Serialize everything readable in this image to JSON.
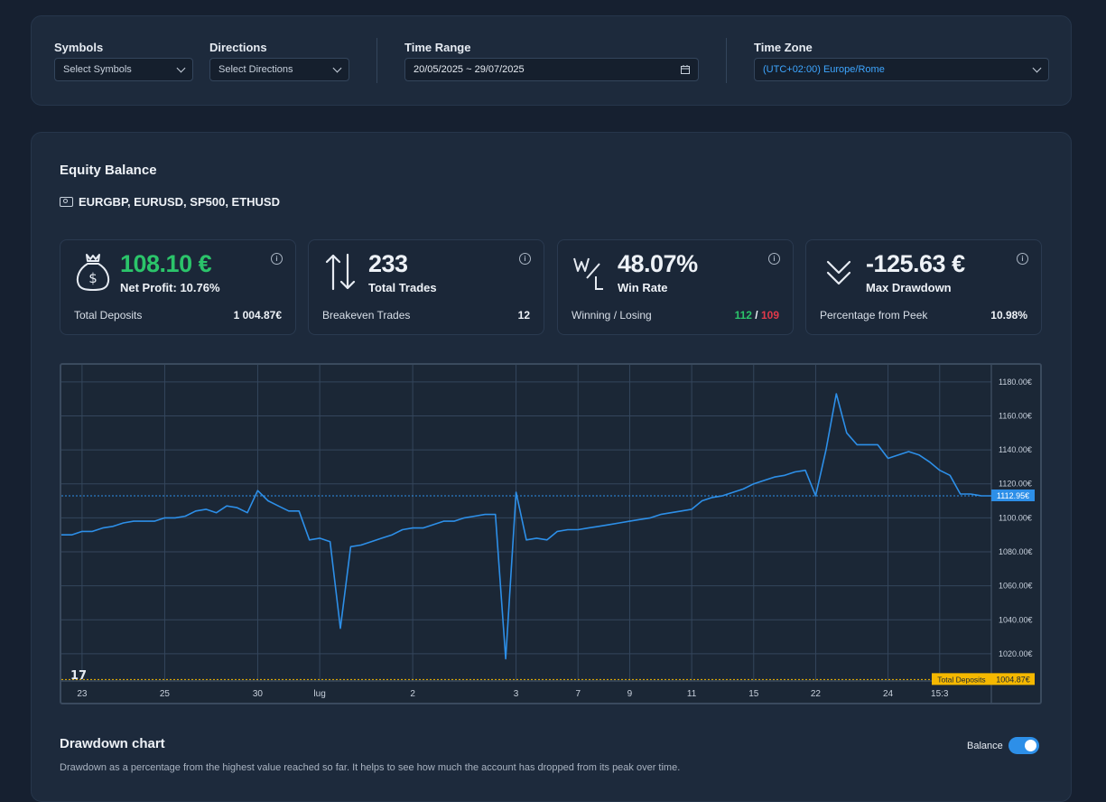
{
  "filters": {
    "symbols": {
      "label": "Symbols",
      "placeholder": "Select Symbols"
    },
    "directions": {
      "label": "Directions",
      "placeholder": "Select Directions"
    },
    "time_range": {
      "label": "Time Range",
      "value": "20/05/2025 ~ 29/07/2025"
    },
    "time_zone": {
      "label": "Time Zone",
      "value": "(UTC+02:00) Europe/Rome"
    }
  },
  "equity": {
    "title": "Equity Balance",
    "symbols": "EURGBP, EURUSD, SP500, ETHUSD"
  },
  "stats": [
    {
      "value": "108.10 €",
      "sub": "Net Profit: 10.76%",
      "foot_label": "Total Deposits",
      "foot_value": "1 004.87€",
      "icon": "money-bag-icon"
    },
    {
      "value": "233",
      "sub": "Total Trades",
      "foot_label": "Breakeven Trades",
      "foot_value": "12",
      "icon": "up-down-arrows-icon"
    },
    {
      "value": "48.07%",
      "sub": "Win Rate",
      "foot_label": "Winning / Losing",
      "win": "112",
      "sep": " / ",
      "lose": "109",
      "icon": "win-loss-icon"
    },
    {
      "value": "-125.63 €",
      "sub": "Max Drawdown",
      "foot_label": "Percentage from Peek",
      "foot_value": "10.98%",
      "icon": "double-chevron-down-icon"
    }
  ],
  "colors": {
    "accent": "#2d8fe8",
    "profit": "#2bc46a",
    "loss": "#e0394a",
    "deposit_marker": "#f5b800"
  },
  "chart_data": {
    "type": "line",
    "xlabel": "",
    "ylabel": "",
    "ylim": [
      1004,
      1190
    ],
    "y_ticks": [
      "1180.00€",
      "1160.00€",
      "1140.00€",
      "1120.00€",
      "1100.00€",
      "1080.00€",
      "1060.00€",
      "1040.00€",
      "1020.00€"
    ],
    "y_tick_values": [
      1180,
      1160,
      1140,
      1120,
      1100,
      1080,
      1060,
      1040,
      1020
    ],
    "x_ticks": [
      "23",
      "25",
      "30",
      "lug",
      "2",
      "3",
      "7",
      "9",
      "11",
      "15",
      "22",
      "24",
      "15:3"
    ],
    "x_tick_index": [
      2,
      10,
      19,
      25,
      34,
      44,
      50,
      55,
      61,
      67,
      73,
      80,
      85
    ],
    "current_value_label": "1112.95€",
    "current_value": 1112.95,
    "deposit_label": "Total Deposits",
    "deposit_value_label": "1004.87€",
    "deposit_value": 1004.87,
    "series": [
      {
        "values": [
          1090,
          1090,
          1092,
          1092,
          1094,
          1095,
          1097,
          1098,
          1098,
          1098,
          1100,
          1100,
          1101,
          1104,
          1105,
          1103,
          1107,
          1106,
          1103,
          1116,
          1110,
          1107,
          1104,
          1104,
          1087,
          1088,
          1086,
          1035,
          1083,
          1084,
          1086,
          1088,
          1090,
          1093,
          1094,
          1094,
          1096,
          1098,
          1098,
          1100,
          1101,
          1102,
          1102,
          1017,
          1115,
          1087,
          1088,
          1087,
          1092,
          1093,
          1093,
          1094,
          1095,
          1096,
          1097,
          1098,
          1099,
          1100,
          1102,
          1103,
          1104,
          1105,
          1110,
          1112,
          1113,
          1115,
          1117,
          1120,
          1122,
          1124,
          1125,
          1127,
          1128,
          1113,
          1140,
          1173,
          1150,
          1143,
          1143,
          1143,
          1135,
          1137,
          1139,
          1137,
          1133,
          1128,
          1125,
          1114,
          1114,
          1113,
          1112.95
        ]
      }
    ]
  },
  "drawdown": {
    "title": "Drawdown chart",
    "description": "Drawdown as a percentage from the highest value reached so far. It helps to see how much the account has dropped from its peak over time.",
    "toggle_label": "Balance"
  }
}
